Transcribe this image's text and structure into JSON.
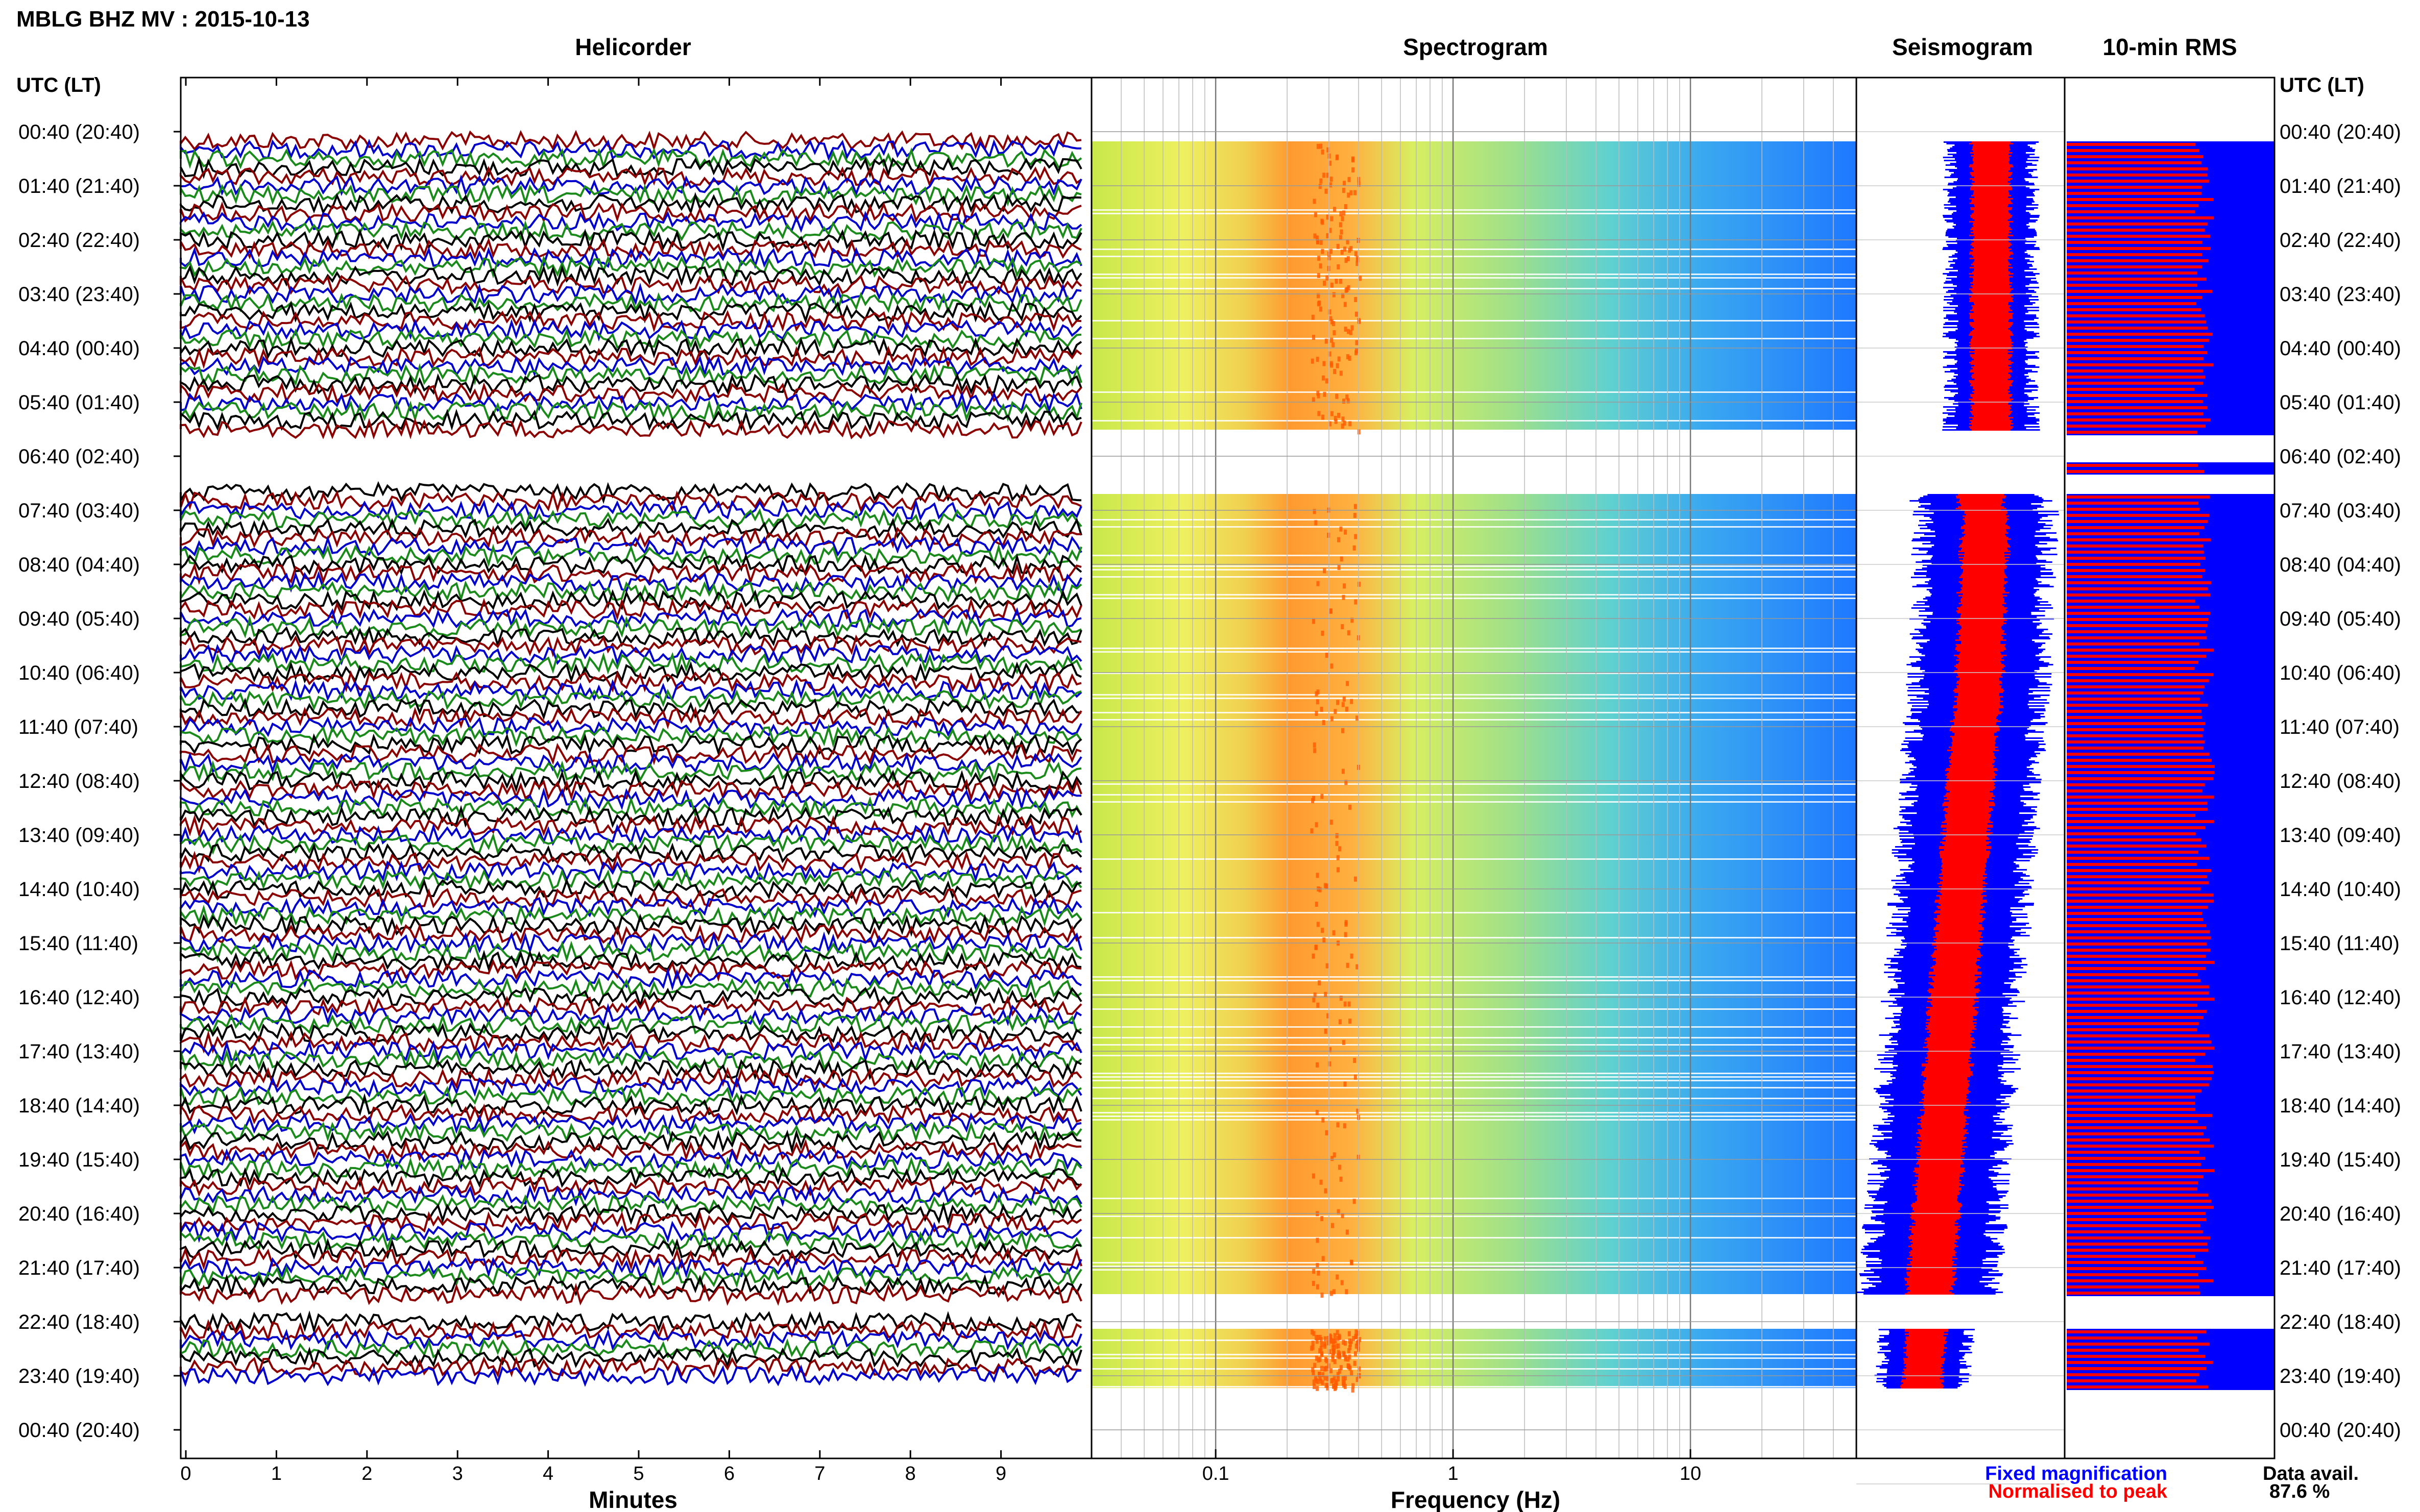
{
  "header": {
    "station_title": "MBLG BHZ MV : 2015-10-13"
  },
  "panels": {
    "helicorder": "Helicorder",
    "spectrogram": "Spectrogram",
    "seismogram": "Seismogram",
    "rms": "10-min RMS"
  },
  "time_axis_label": "UTC (LT)",
  "time_labels": [
    "00:40 (20:40)",
    "01:40 (21:40)",
    "02:40 (22:40)",
    "03:40 (23:40)",
    "04:40 (00:40)",
    "05:40 (01:40)",
    "06:40 (02:40)",
    "07:40 (03:40)",
    "08:40 (04:40)",
    "09:40 (05:40)",
    "10:40 (06:40)",
    "11:40 (07:40)",
    "12:40 (08:40)",
    "13:40 (09:40)",
    "14:40 (10:40)",
    "15:40 (11:40)",
    "16:40 (12:40)",
    "17:40 (13:40)",
    "18:40 (14:40)",
    "19:40 (15:40)",
    "20:40 (16:40)",
    "21:40 (17:40)",
    "22:40 (18:40)",
    "23:40 (19:40)",
    "00:40 (20:40)"
  ],
  "legend": {
    "fixed": "Fixed magnification",
    "normalised": "Normalised to peak",
    "fixed_color": "#0000ff",
    "normalised_color": "#ff0000"
  },
  "availability": {
    "label": "Data avail.",
    "value": "87.6 %"
  },
  "colors": {
    "trace_palette": [
      "#8b0000",
      "#0000cc",
      "#1a8a1a",
      "#000000"
    ],
    "spec_low": "#1e78ff",
    "spec_high": "#ff8800",
    "rms_fixed": "#0000ff",
    "rms_norm": "#ff0000"
  },
  "chart_data": [
    {
      "type": "line",
      "panel": "Helicorder",
      "xlabel": "Minutes",
      "xlim": [
        0,
        10
      ],
      "x_ticks": [
        "0",
        "1",
        "2",
        "3",
        "4",
        "5",
        "6",
        "7",
        "8",
        "9"
      ],
      "data_gaps": [
        {
          "start": "06:10",
          "end": "07:10"
        },
        {
          "start": "22:10",
          "end": "22:30"
        }
      ]
    },
    {
      "type": "heatmap",
      "panel": "Spectrogram",
      "xlabel": "Frequency (Hz)",
      "xscale": "log",
      "xlim": [
        0.03,
        50
      ],
      "x_ticks": [
        "0.1",
        "1",
        "10"
      ],
      "peak_band_hz": [
        0.25,
        0.4
      ]
    },
    {
      "type": "line",
      "panel": "Seismogram",
      "series": [
        {
          "name": "Fixed magnification"
        },
        {
          "name": "Normalised to peak"
        }
      ]
    },
    {
      "type": "bar",
      "panel": "10-min RMS",
      "series": [
        {
          "name": "Fixed magnification"
        },
        {
          "name": "Normalised to peak"
        }
      ]
    }
  ]
}
